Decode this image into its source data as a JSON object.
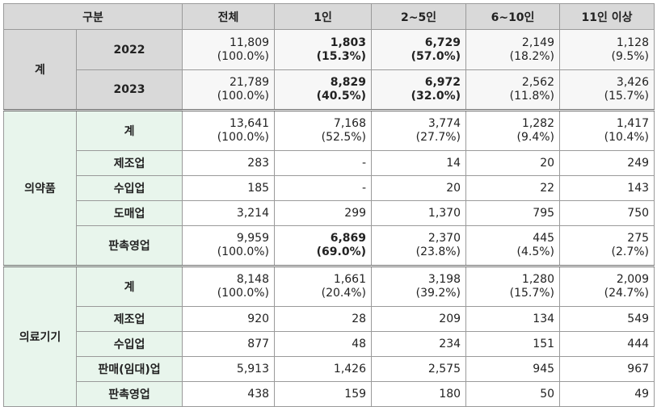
{
  "header": [
    "구분",
    "전체",
    "1인",
    "2~5인",
    "6~10인",
    "11인 이상"
  ],
  "groups": [
    {
      "name": "계",
      "rows": [
        {
          "sub": "2022",
          "cells": [
            [
              "11,809",
              "(100.0%)",
              false
            ],
            [
              "1,803",
              "(15.3%)",
              true
            ],
            [
              "6,729",
              "(57.0%)",
              true
            ],
            [
              "2,149",
              "(18.2%)",
              false
            ],
            [
              "1,128",
              "(9.5%)",
              false
            ]
          ]
        },
        {
          "sub": "2023",
          "cells": [
            [
              "21,789",
              "(100.0%)",
              false
            ],
            [
              "8,829",
              "(40.5%)",
              true
            ],
            [
              "6,972",
              "(32.0%)",
              true
            ],
            [
              "2,562",
              "(11.8%)",
              false
            ],
            [
              "3,426",
              "(15.7%)",
              false
            ]
          ]
        }
      ]
    },
    {
      "name": "의약품",
      "rows": [
        {
          "sub": "계",
          "cells": [
            [
              "13,641",
              "(100.0%)",
              false
            ],
            [
              "7,168",
              "(52.5%)",
              false
            ],
            [
              "3,774",
              "(27.7%)",
              false
            ],
            [
              "1,282",
              "(9.4%)",
              false
            ],
            [
              "1,417",
              "(10.4%)",
              false
            ]
          ]
        },
        {
          "sub": "제조업",
          "cells": [
            [
              "283",
              "",
              false
            ],
            [
              "-",
              "",
              false
            ],
            [
              "14",
              "",
              false
            ],
            [
              "20",
              "",
              false
            ],
            [
              "249",
              "",
              false
            ]
          ]
        },
        {
          "sub": "수입업",
          "cells": [
            [
              "185",
              "",
              false
            ],
            [
              "-",
              "",
              false
            ],
            [
              "20",
              "",
              false
            ],
            [
              "22",
              "",
              false
            ],
            [
              "143",
              "",
              false
            ]
          ]
        },
        {
          "sub": "도매업",
          "cells": [
            [
              "3,214",
              "",
              false
            ],
            [
              "299",
              "",
              false
            ],
            [
              "1,370",
              "",
              false
            ],
            [
              "795",
              "",
              false
            ],
            [
              "750",
              "",
              false
            ]
          ]
        },
        {
          "sub": "판촉영업",
          "cells": [
            [
              "9,959",
              "(100.0%)",
              false
            ],
            [
              "6,869",
              "(69.0%)",
              true
            ],
            [
              "2,370",
              "(23.8%)",
              false
            ],
            [
              "445",
              "(4.5%)",
              false
            ],
            [
              "275",
              "(2.7%)",
              false
            ]
          ]
        }
      ]
    },
    {
      "name": "의료기기",
      "rows": [
        {
          "sub": "계",
          "cells": [
            [
              "8,148",
              "(100.0%)",
              false
            ],
            [
              "1,661",
              "(20.4%)",
              false
            ],
            [
              "3,198",
              "(39.2%)",
              false
            ],
            [
              "1,280",
              "(15.7%)",
              false
            ],
            [
              "2,009",
              "(24.7%)",
              false
            ]
          ]
        },
        {
          "sub": "제조업",
          "cells": [
            [
              "920",
              "",
              false
            ],
            [
              "28",
              "",
              false
            ],
            [
              "209",
              "",
              false
            ],
            [
              "134",
              "",
              false
            ],
            [
              "549",
              "",
              false
            ]
          ]
        },
        {
          "sub": "수입업",
          "cells": [
            [
              "877",
              "",
              false
            ],
            [
              "48",
              "",
              false
            ],
            [
              "234",
              "",
              false
            ],
            [
              "151",
              "",
              false
            ],
            [
              "444",
              "",
              false
            ]
          ]
        },
        {
          "sub": "판매(임대)업",
          "cells": [
            [
              "5,913",
              "",
              false
            ],
            [
              "1,426",
              "",
              false
            ],
            [
              "2,575",
              "",
              false
            ],
            [
              "945",
              "",
              false
            ],
            [
              "967",
              "",
              false
            ]
          ]
        },
        {
          "sub": "판촉영업",
          "cells": [
            [
              "438",
              "",
              false
            ],
            [
              "159",
              "",
              false
            ],
            [
              "180",
              "",
              false
            ],
            [
              "50",
              "",
              false
            ],
            [
              "49",
              "",
              false
            ]
          ]
        }
      ]
    }
  ],
  "colors": {
    "header_bg": "#d9d9d9",
    "total_bg": "#d9d9d9",
    "category_bg": "#e8f5ec"
  }
}
